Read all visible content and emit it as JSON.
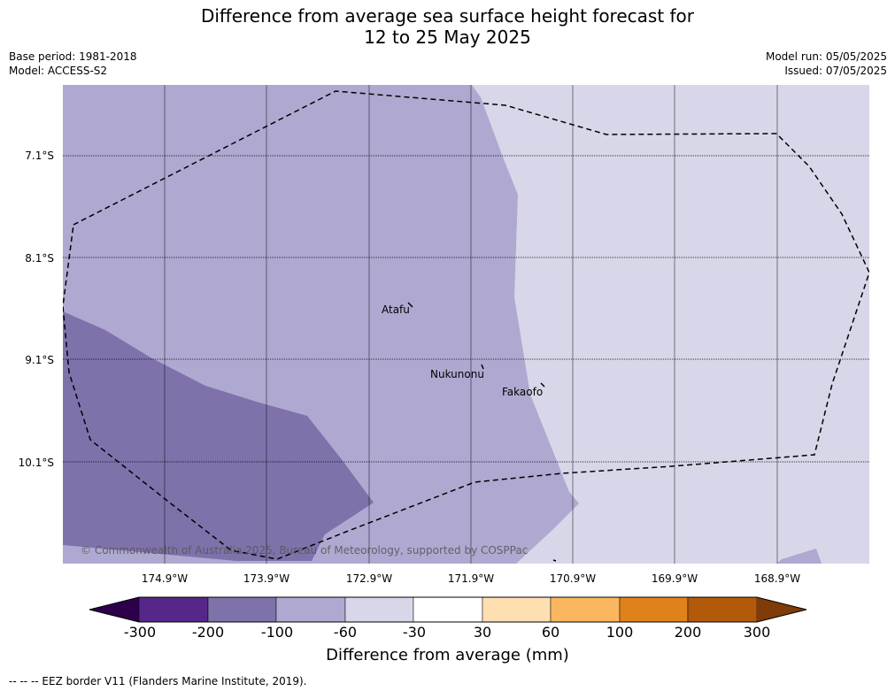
{
  "title": {
    "line1": "Difference from average sea surface height forecast for",
    "line2": "12 to 25 May 2025"
  },
  "meta": {
    "base_period": "Base period: 1981-2018",
    "model": "Model: ACCESS-S2",
    "model_run": "Model run: 05/05/2025",
    "issued": "Issued: 07/05/2025"
  },
  "map": {
    "lat_labels": [
      "7.1°S",
      "8.1°S",
      "9.1°S",
      "10.1°S"
    ],
    "lon_labels": [
      "174.9°W",
      "173.9°W",
      "172.9°W",
      "171.9°W",
      "170.9°W",
      "169.9°W",
      "168.9°W"
    ],
    "places": [
      "Atafu",
      "Nukunonu",
      "Fakaofo"
    ],
    "copyright": "© Commonwealth of Australia 2025, Bureau of Meteorology, supported by COSPPac",
    "colors": {
      "band_-100_-60": "#afa9d1",
      "band_-200_-100": "#7f72ab",
      "band_-60_-30": "#d7d7e9"
    }
  },
  "colorbar": {
    "ticks": [
      "-300",
      "-200",
      "-100",
      "-60",
      "-30",
      "30",
      "60",
      "100",
      "200",
      "300"
    ],
    "colors": [
      "#2d004b",
      "#542788",
      "#7f72ab",
      "#afa9d1",
      "#d7d7e9",
      "#ffffff",
      "#fedfb2",
      "#fbb760",
      "#e0821b",
      "#b25a09",
      "#7f3b08"
    ],
    "title": "Difference from average (mm)"
  },
  "footnote": "--  --  -- EEZ border V11 (Flanders Marine Institute, 2019)."
}
